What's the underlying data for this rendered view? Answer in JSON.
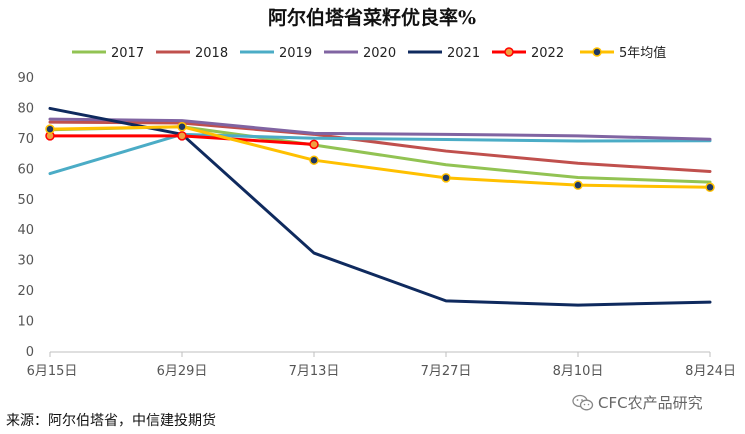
{
  "chart_data": {
    "type": "line",
    "title": "阿尔伯塔省菜籽优良率%",
    "x": [
      "6月15日",
      "6月29日",
      "7月13日",
      "7月27日",
      "8月10日",
      "8月24日"
    ],
    "ylim": [
      0,
      90
    ],
    "yticks": [
      0,
      10,
      20,
      30,
      40,
      50,
      60,
      70,
      80,
      90
    ],
    "grid": false,
    "legend_position": "top",
    "series": [
      {
        "name": "2017",
        "color": "#92c353",
        "markers": false,
        "values": [
          73,
          74,
          68,
          61.5,
          57.3,
          55.8
        ]
      },
      {
        "name": "2018",
        "color": "#c0504d",
        "markers": false,
        "values": [
          75.5,
          75.2,
          71.5,
          66,
          62,
          59.3
        ]
      },
      {
        "name": "2019",
        "color": "#4bacc6",
        "markers": false,
        "values": [
          58.6,
          71.5,
          70.2,
          69.8,
          69.3,
          69.4
        ]
      },
      {
        "name": "2020",
        "color": "#8064a2",
        "markers": false,
        "values": [
          76.5,
          76,
          71.8,
          71.5,
          71,
          69.9
        ]
      },
      {
        "name": "2021",
        "color": "#0f2a5e",
        "markers": false,
        "values": [
          80,
          71.5,
          32.5,
          16.8,
          15.4,
          16.4
        ]
      },
      {
        "name": "2022",
        "color": "#ff0000",
        "markers": true,
        "marker_fill": "#f0a040",
        "values": [
          71,
          71,
          68.2,
          null,
          null,
          null
        ]
      },
      {
        "name": "5年均值",
        "color": "#ffc000",
        "markers": true,
        "marker_fill": "#1f3864",
        "values": [
          73.2,
          74,
          63,
          57.2,
          54.8,
          54.1
        ]
      }
    ]
  },
  "footer": {
    "source": "来源：阿尔伯塔省，中信建投期货",
    "watermark": "CFC农产品研究"
  },
  "icons": {
    "watermark_icon": "wechat-icon"
  }
}
